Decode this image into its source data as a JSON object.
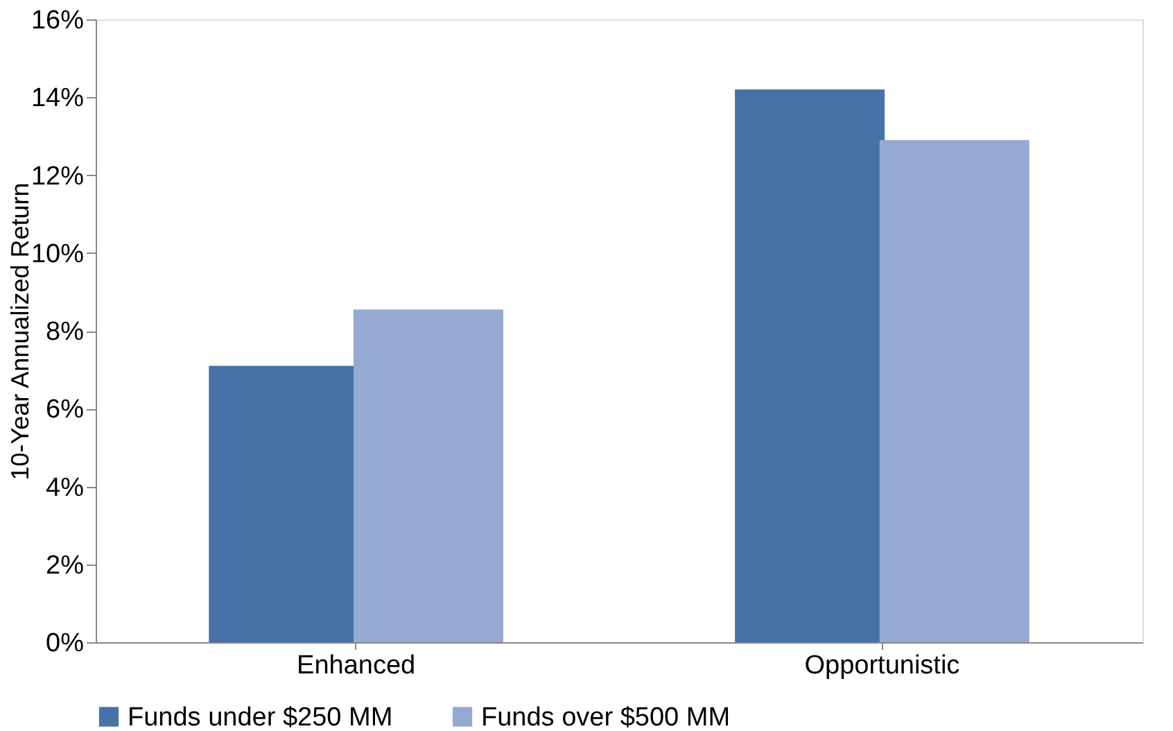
{
  "chart_data": {
    "type": "bar",
    "ylabel": "10-Year Annualized Return",
    "categories": [
      "Enhanced",
      "Opportunistic"
    ],
    "series": [
      {
        "name": "Funds under $250 MM",
        "color": "#4672a8",
        "values": [
          7.1,
          14.2
        ]
      },
      {
        "name": "Funds over $500 MM",
        "color": "#95a9d1",
        "values": [
          8.55,
          12.9
        ]
      }
    ],
    "ylim": [
      0,
      16
    ],
    "yticks": [
      {
        "value": 0,
        "label": "0%"
      },
      {
        "value": 2,
        "label": "2%"
      },
      {
        "value": 4,
        "label": "4%"
      },
      {
        "value": 6,
        "label": "6%"
      },
      {
        "value": 8,
        "label": "8%"
      },
      {
        "value": 10,
        "label": "10%"
      },
      {
        "value": 12,
        "label": "12%"
      },
      {
        "value": 14,
        "label": "14%"
      },
      {
        "value": 16,
        "label": "16%"
      }
    ],
    "grid": false,
    "legend": "bottom"
  }
}
